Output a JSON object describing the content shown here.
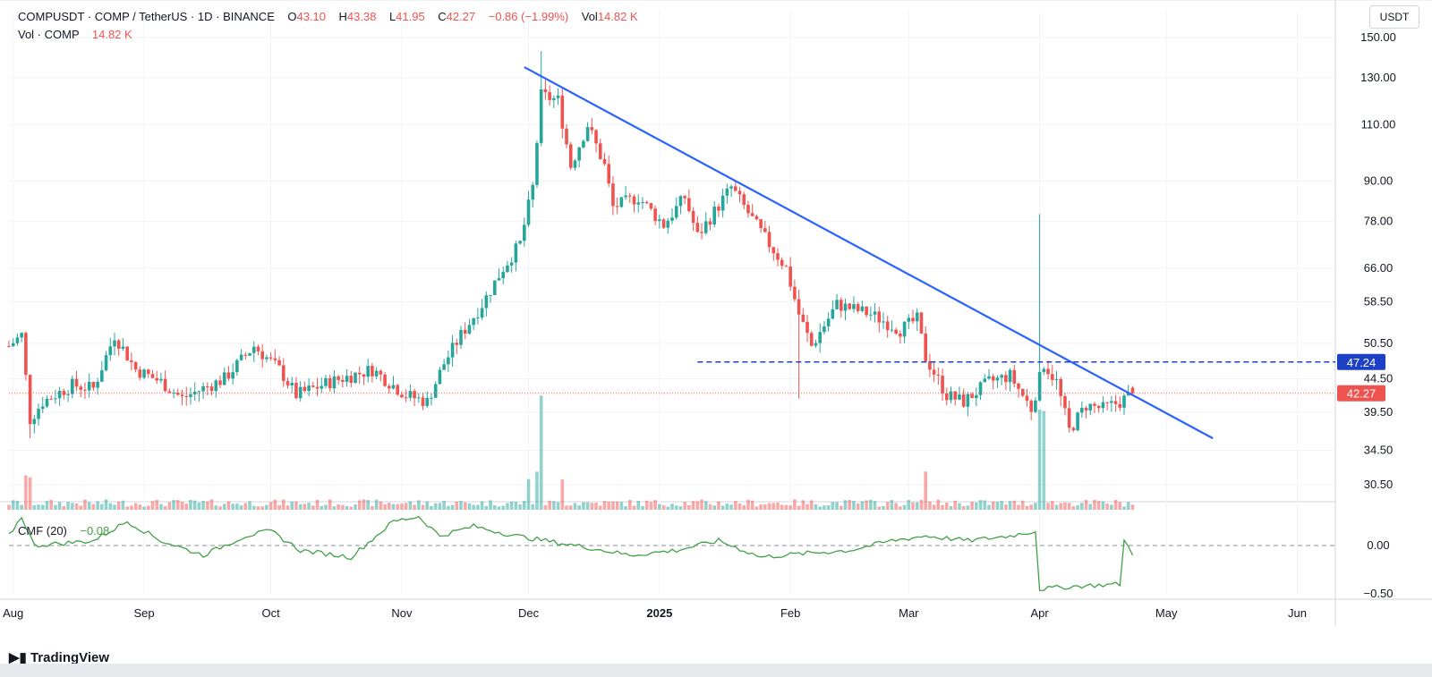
{
  "header": {
    "symbol": "COMPUSDT",
    "name": "COMP / TetherUS",
    "interval": "1D",
    "exchange": "BINANCE",
    "o_label": "O",
    "o_value": "43.10",
    "h_label": "H",
    "h_value": "43.38",
    "l_label": "L",
    "l_value": "41.95",
    "c_label": "C",
    "c_value": "42.27",
    "change": "−0.86 (−1.99%)",
    "vol_label": "Vol",
    "vol_value": "14.82 K",
    "vol_row_label": "Vol · COMP",
    "vol_row_value": "14.82 K"
  },
  "currency_button": "USDT",
  "price_axis_ticks": [
    "150.00",
    "130.00",
    "110.00",
    "90.00",
    "78.00",
    "66.00",
    "58.50",
    "50.50",
    "44.50",
    "39.50",
    "34.50",
    "30.50"
  ],
  "price_tick_values": [
    150,
    130,
    110,
    90,
    78,
    66,
    58.5,
    50.5,
    44.5,
    39.5,
    34.5,
    30.5
  ],
  "price_labels": {
    "resistance": {
      "text": "47.24",
      "value": 47.24,
      "color": "#1e40c4"
    },
    "last": {
      "text": "42.27",
      "value": 42.27,
      "color": "#ef5350"
    }
  },
  "x_axis_ticks": [
    {
      "label": "Aug",
      "date": "2024-08-01",
      "bold": false
    },
    {
      "label": "Sep",
      "date": "2024-09-01",
      "bold": false
    },
    {
      "label": "Oct",
      "date": "2024-10-01",
      "bold": false
    },
    {
      "label": "Nov",
      "date": "2024-11-01",
      "bold": false
    },
    {
      "label": "Dec",
      "date": "2024-12-01",
      "bold": false
    },
    {
      "label": "2025",
      "date": "2025-01-01",
      "bold": true
    },
    {
      "label": "Feb",
      "date": "2025-02-01",
      "bold": false
    },
    {
      "label": "Mar",
      "date": "2025-03-01",
      "bold": false
    },
    {
      "label": "Apr",
      "date": "2025-04-01",
      "bold": false
    },
    {
      "label": "May",
      "date": "2025-05-01",
      "bold": false
    },
    {
      "label": "Jun",
      "date": "2025-06-01",
      "bold": false
    }
  ],
  "cmf": {
    "label": "CMF (20)",
    "value": "−0.08",
    "axis_ticks": [
      "0.00",
      "−0.50"
    ],
    "axis_values": [
      0,
      -0.5
    ],
    "color": "#43a047"
  },
  "brand": "TradingView",
  "colors": {
    "up": "#26a69a",
    "down": "#ef5350",
    "trendline": "#2962ff",
    "cmf": "#43a047"
  },
  "chart_data": {
    "type": "candlestick",
    "title": "COMPUSDT · COMP / TetherUS · 1D · BINANCE",
    "y_scale": "log",
    "ylim": [
      29,
      150
    ],
    "x_range": [
      "2024-07-31",
      "2025-06-10"
    ],
    "ohlc_keypoints": [
      {
        "date": "2024-07-31",
        "close": 50.0
      },
      {
        "date": "2024-08-03",
        "close": 52.0
      },
      {
        "date": "2024-08-05",
        "close": 38.5
      },
      {
        "date": "2024-08-08",
        "close": 41.0
      },
      {
        "date": "2024-08-15",
        "close": 43.5
      },
      {
        "date": "2024-08-20",
        "close": 43.0
      },
      {
        "date": "2024-08-25",
        "close": 52.0
      },
      {
        "date": "2024-08-30",
        "close": 46.0
      },
      {
        "date": "2024-09-05",
        "close": 44.0
      },
      {
        "date": "2024-09-10",
        "close": 41.5
      },
      {
        "date": "2024-09-15",
        "close": 43.0
      },
      {
        "date": "2024-09-20",
        "close": 44.5
      },
      {
        "date": "2024-09-27",
        "close": 50.0
      },
      {
        "date": "2024-10-03",
        "close": 46.0
      },
      {
        "date": "2024-10-07",
        "close": 42.0
      },
      {
        "date": "2024-10-15",
        "close": 44.0
      },
      {
        "date": "2024-10-25",
        "close": 46.0
      },
      {
        "date": "2024-11-02",
        "close": 42.0
      },
      {
        "date": "2024-11-07",
        "close": 41.0
      },
      {
        "date": "2024-11-11",
        "close": 47.0
      },
      {
        "date": "2024-11-15",
        "close": 52.0
      },
      {
        "date": "2024-11-20",
        "close": 58.0
      },
      {
        "date": "2024-11-25",
        "close": 66.0
      },
      {
        "date": "2024-11-29",
        "close": 72.0
      },
      {
        "date": "2024-12-02",
        "close": 88.0
      },
      {
        "date": "2024-12-04",
        "close": 122.0
      },
      {
        "date": "2024-12-08",
        "close": 120.0
      },
      {
        "date": "2024-12-11",
        "close": 95.0
      },
      {
        "date": "2024-12-15",
        "close": 110.0
      },
      {
        "date": "2024-12-19",
        "close": 95.0
      },
      {
        "date": "2024-12-21",
        "close": 82.0
      },
      {
        "date": "2024-12-27",
        "close": 85.0
      },
      {
        "date": "2025-01-02",
        "close": 77.0
      },
      {
        "date": "2025-01-07",
        "close": 85.0
      },
      {
        "date": "2025-01-10",
        "close": 74.0
      },
      {
        "date": "2025-01-18",
        "close": 88.0
      },
      {
        "date": "2025-01-25",
        "close": 75.0
      },
      {
        "date": "2025-01-31",
        "close": 66.0
      },
      {
        "date": "2025-02-03",
        "close": 56.0
      },
      {
        "date": "2025-02-06",
        "close": 50.0
      },
      {
        "date": "2025-02-12",
        "close": 58.0
      },
      {
        "date": "2025-02-20",
        "close": 56.0
      },
      {
        "date": "2025-02-27",
        "close": 53.0
      },
      {
        "date": "2025-03-03",
        "close": 55.0
      },
      {
        "date": "2025-03-05",
        "close": 48.0
      },
      {
        "date": "2025-03-10",
        "close": 42.0
      },
      {
        "date": "2025-03-14",
        "close": 41.0
      },
      {
        "date": "2025-03-20",
        "close": 44.0
      },
      {
        "date": "2025-03-25",
        "close": 45.0
      },
      {
        "date": "2025-03-30",
        "close": 40.0
      },
      {
        "date": "2025-04-02",
        "close": 47.0
      },
      {
        "date": "2025-04-05",
        "close": 44.0
      },
      {
        "date": "2025-04-08",
        "close": 37.0
      },
      {
        "date": "2025-04-12",
        "close": 40.5
      },
      {
        "date": "2025-04-16",
        "close": 40.0
      },
      {
        "date": "2025-04-20",
        "close": 41.0
      },
      {
        "date": "2025-04-23",
        "close": 42.27
      }
    ],
    "notable_wicks": [
      {
        "date": "2024-12-04",
        "high": 143.0
      },
      {
        "date": "2025-02-03",
        "low": 41.5
      },
      {
        "date": "2025-04-01",
        "high": 80.0
      },
      {
        "date": "2024-08-05",
        "low": 36.0
      }
    ],
    "volume_spikes": [
      {
        "date": "2024-12-04"
      },
      {
        "date": "2025-04-01"
      },
      {
        "date": "2025-04-02"
      }
    ],
    "trendline": {
      "start": {
        "date": "2024-11-30",
        "price": 135.0
      },
      "end": {
        "date": "2025-05-12",
        "price": 36.0
      }
    },
    "resistance_level": 47.24,
    "cmf_keypoints": [
      {
        "date": "2024-07-31",
        "value": 0.1
      },
      {
        "date": "2024-08-03",
        "value": 0.3
      },
      {
        "date": "2024-08-06",
        "value": 0.0
      },
      {
        "date": "2024-08-20",
        "value": 0.05
      },
      {
        "date": "2024-08-28",
        "value": 0.25
      },
      {
        "date": "2024-09-05",
        "value": 0.05
      },
      {
        "date": "2024-09-15",
        "value": -0.1
      },
      {
        "date": "2024-09-25",
        "value": 0.1
      },
      {
        "date": "2024-10-01",
        "value": 0.15
      },
      {
        "date": "2024-10-08",
        "value": -0.05
      },
      {
        "date": "2024-10-20",
        "value": -0.12
      },
      {
        "date": "2024-10-30",
        "value": 0.25
      },
      {
        "date": "2024-11-05",
        "value": 0.3
      },
      {
        "date": "2024-11-10",
        "value": 0.1
      },
      {
        "date": "2024-11-18",
        "value": 0.2
      },
      {
        "date": "2024-11-28",
        "value": 0.1
      },
      {
        "date": "2024-12-05",
        "value": 0.05
      },
      {
        "date": "2024-12-15",
        "value": -0.02
      },
      {
        "date": "2024-12-25",
        "value": -0.1
      },
      {
        "date": "2025-01-05",
        "value": -0.05
      },
      {
        "date": "2025-01-15",
        "value": 0.05
      },
      {
        "date": "2025-01-25",
        "value": -0.12
      },
      {
        "date": "2025-02-05",
        "value": -0.08
      },
      {
        "date": "2025-02-15",
        "value": -0.05
      },
      {
        "date": "2025-02-25",
        "value": 0.05
      },
      {
        "date": "2025-03-05",
        "value": 0.1
      },
      {
        "date": "2025-03-15",
        "value": 0.05
      },
      {
        "date": "2025-03-25",
        "value": 0.1
      },
      {
        "date": "2025-03-31",
        "value": 0.15
      },
      {
        "date": "2025-04-01",
        "value": -0.45
      },
      {
        "date": "2025-04-10",
        "value": -0.42
      },
      {
        "date": "2025-04-20",
        "value": -0.4
      },
      {
        "date": "2025-04-21",
        "value": 0.05
      },
      {
        "date": "2025-04-23",
        "value": -0.08
      }
    ]
  }
}
